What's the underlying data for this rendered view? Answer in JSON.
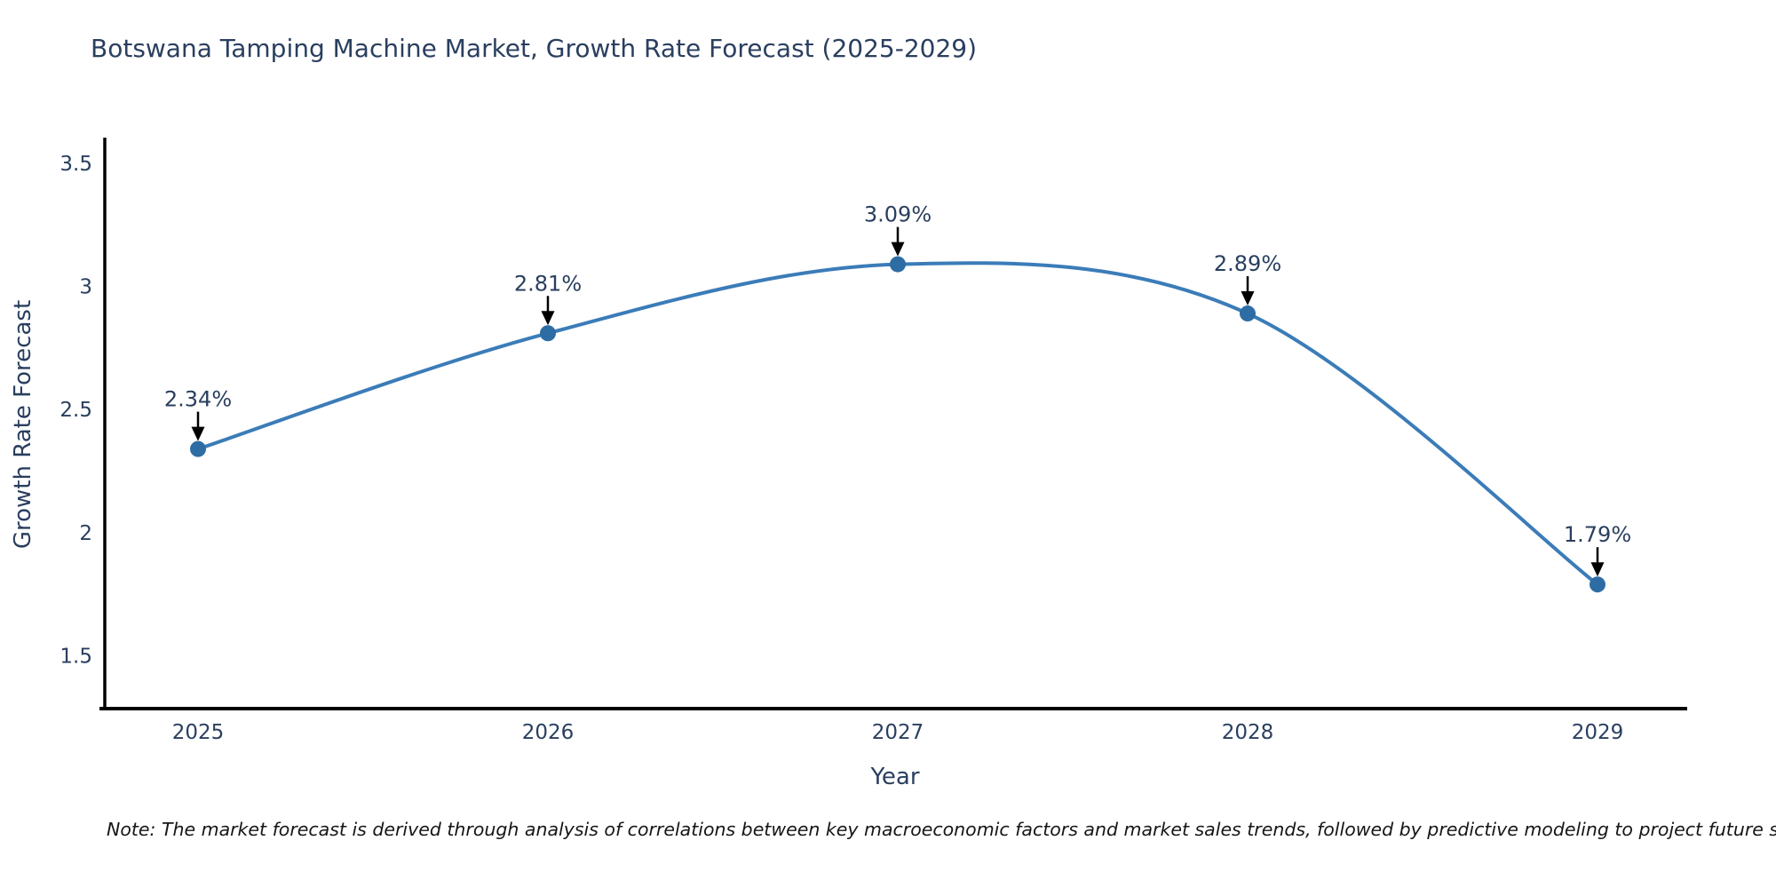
{
  "title": "Botswana Tamping Machine Market, Growth Rate Forecast (2025-2029)",
  "note": "Note: The market forecast is derived through analysis of correlations between key macroeconomic factors and market sales trends, followed by predictive modeling to project future sales",
  "chart_data": {
    "type": "line",
    "title": "Botswana Tamping Machine Market, Growth Rate Forecast (2025-2029)",
    "xlabel": "Year",
    "ylabel": "Growth Rate Forecast",
    "categories": [
      "2025",
      "2026",
      "2027",
      "2028",
      "2029"
    ],
    "values": [
      2.34,
      2.81,
      3.09,
      2.89,
      1.79
    ],
    "point_labels": [
      "2.34%",
      "2.81%",
      "3.09%",
      "2.89%",
      "1.79%"
    ],
    "yticks": [
      1.5,
      2,
      2.5,
      3,
      3.5
    ],
    "ylim": [
      1.286,
      3.604
    ],
    "grid": false,
    "legend_position": "none",
    "line_shape": "spline",
    "colors": {
      "line": "#3b7cb8",
      "marker": "#2e6da4",
      "text": "#2a3f5f",
      "axis": "#000000",
      "annotation_arrow": "#000000",
      "background": "#ffffff"
    }
  }
}
